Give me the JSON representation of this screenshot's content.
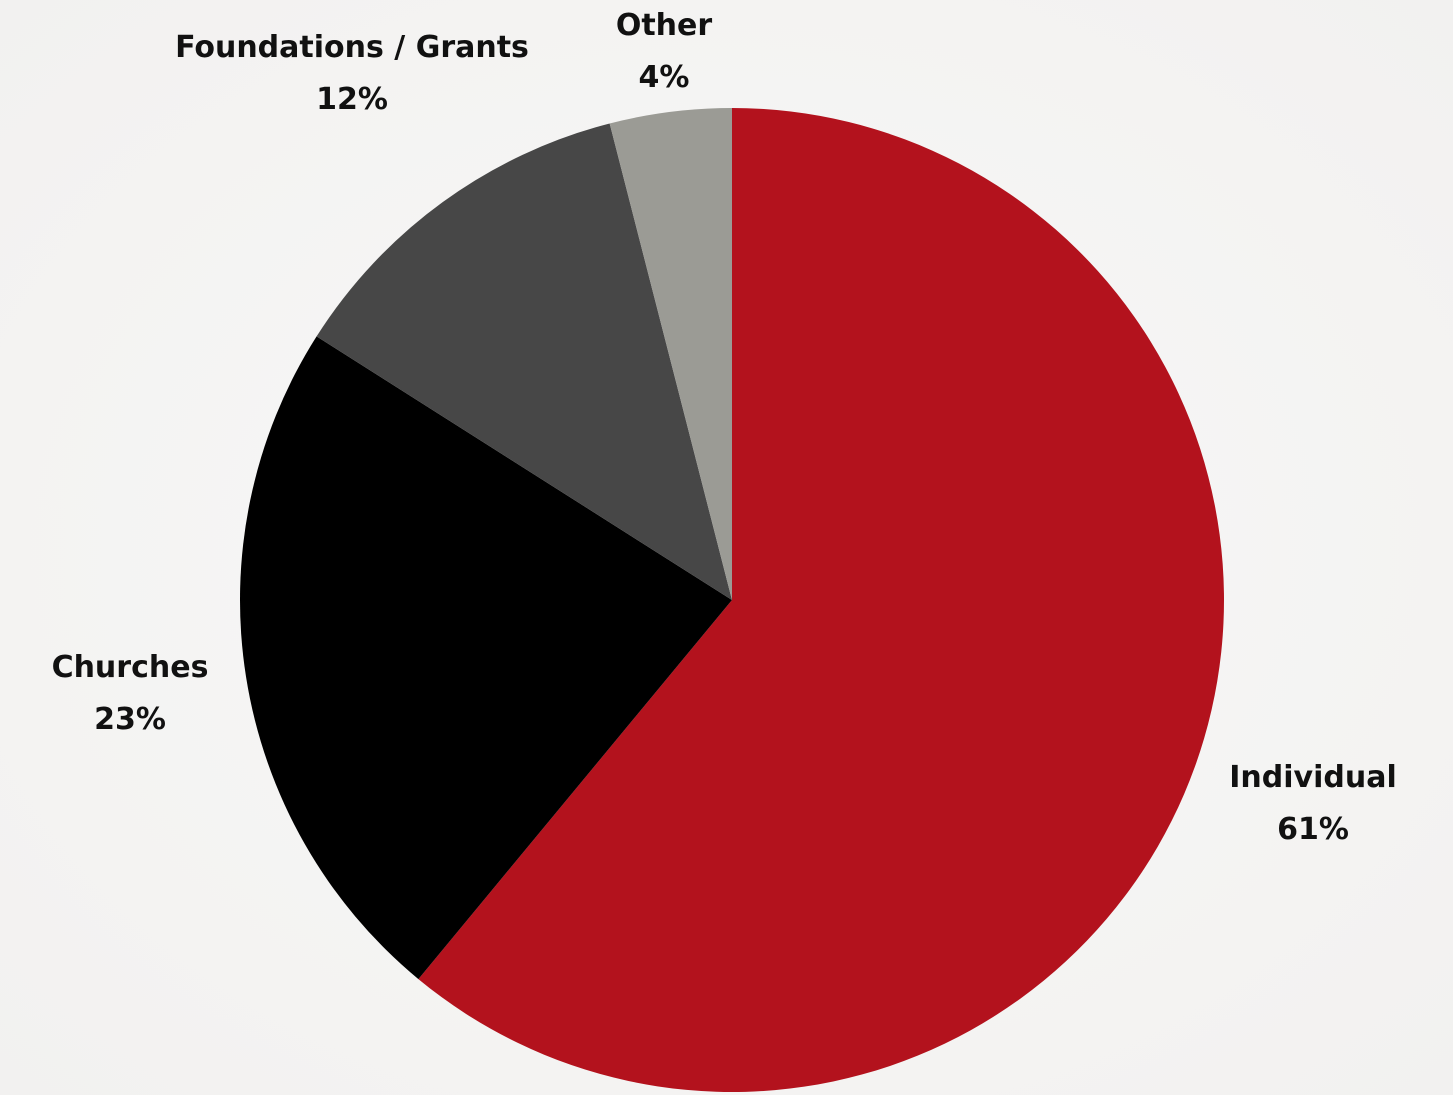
{
  "chart_data": {
    "type": "pie",
    "categories": [
      "Individual",
      "Churches",
      "Foundations / Grants",
      "Other"
    ],
    "values": [
      61,
      23,
      12,
      4
    ],
    "value_labels": [
      "61%",
      "23%",
      "12%",
      "4%"
    ],
    "colors": [
      "#b3121d",
      "#000000",
      "#474747",
      "#9b9b95"
    ],
    "start": "12 o'clock",
    "direction": "clockwise",
    "legend": "none (labels placed beside slices)"
  }
}
